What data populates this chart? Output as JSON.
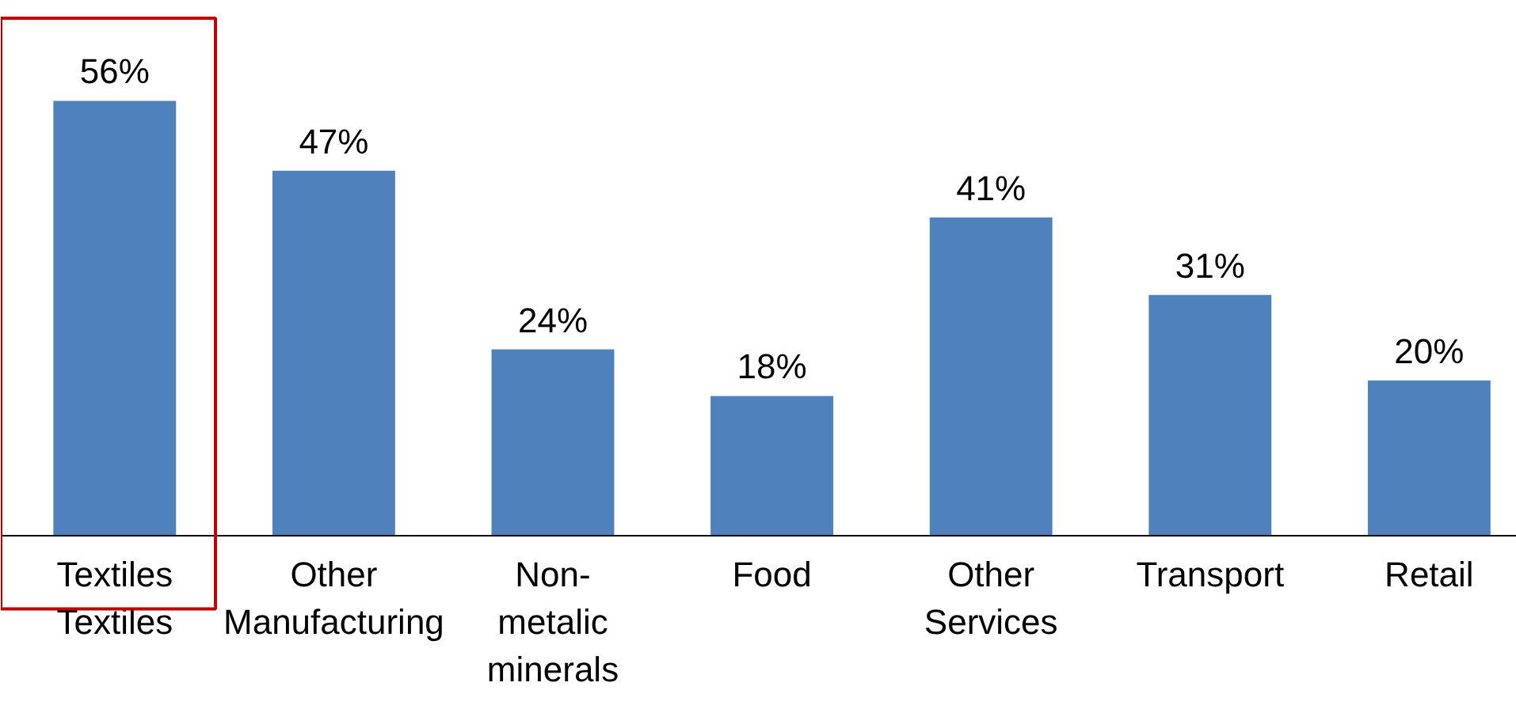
{
  "chart_data": {
    "type": "bar",
    "categories": [
      "Textiles Textiles",
      "Other Manufacturing",
      "Non-metalic minerals",
      "Food",
      "Other Services",
      "Transport",
      "Retail"
    ],
    "values": [
      56,
      47,
      24,
      18,
      41,
      31,
      20
    ],
    "value_labels": [
      "56%",
      "47%",
      "24%",
      "18%",
      "41%",
      "31%",
      "20%"
    ],
    "color": "#4f81bd"
  }
}
